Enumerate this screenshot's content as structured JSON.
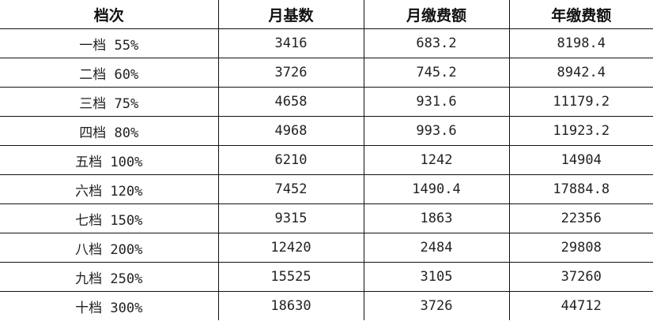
{
  "headers": [
    "档次",
    "月基数",
    "月缴费额",
    "年缴费额"
  ],
  "rows": [
    [
      "一档 55%",
      "3416",
      "683.2",
      "8198.4"
    ],
    [
      "二档 60%",
      "3726",
      "745.2",
      "8942.4"
    ],
    [
      "三档 75%",
      "4658",
      "931.6",
      "11179.2"
    ],
    [
      "四档 80%",
      "4968",
      "993.6",
      "11923.2"
    ],
    [
      "五档 100%",
      "6210",
      "1242",
      "14904"
    ],
    [
      "六档 120%",
      "7452",
      "1490.4",
      "17884.8"
    ],
    [
      "七档 150%",
      "9315",
      "1863",
      "22356"
    ],
    [
      "八档 200%",
      "12420",
      "2484",
      "29808"
    ],
    [
      "九档 250%",
      "15525",
      "3105",
      "37260"
    ],
    [
      "十档 300%",
      "18630",
      "3726",
      "44712"
    ]
  ]
}
